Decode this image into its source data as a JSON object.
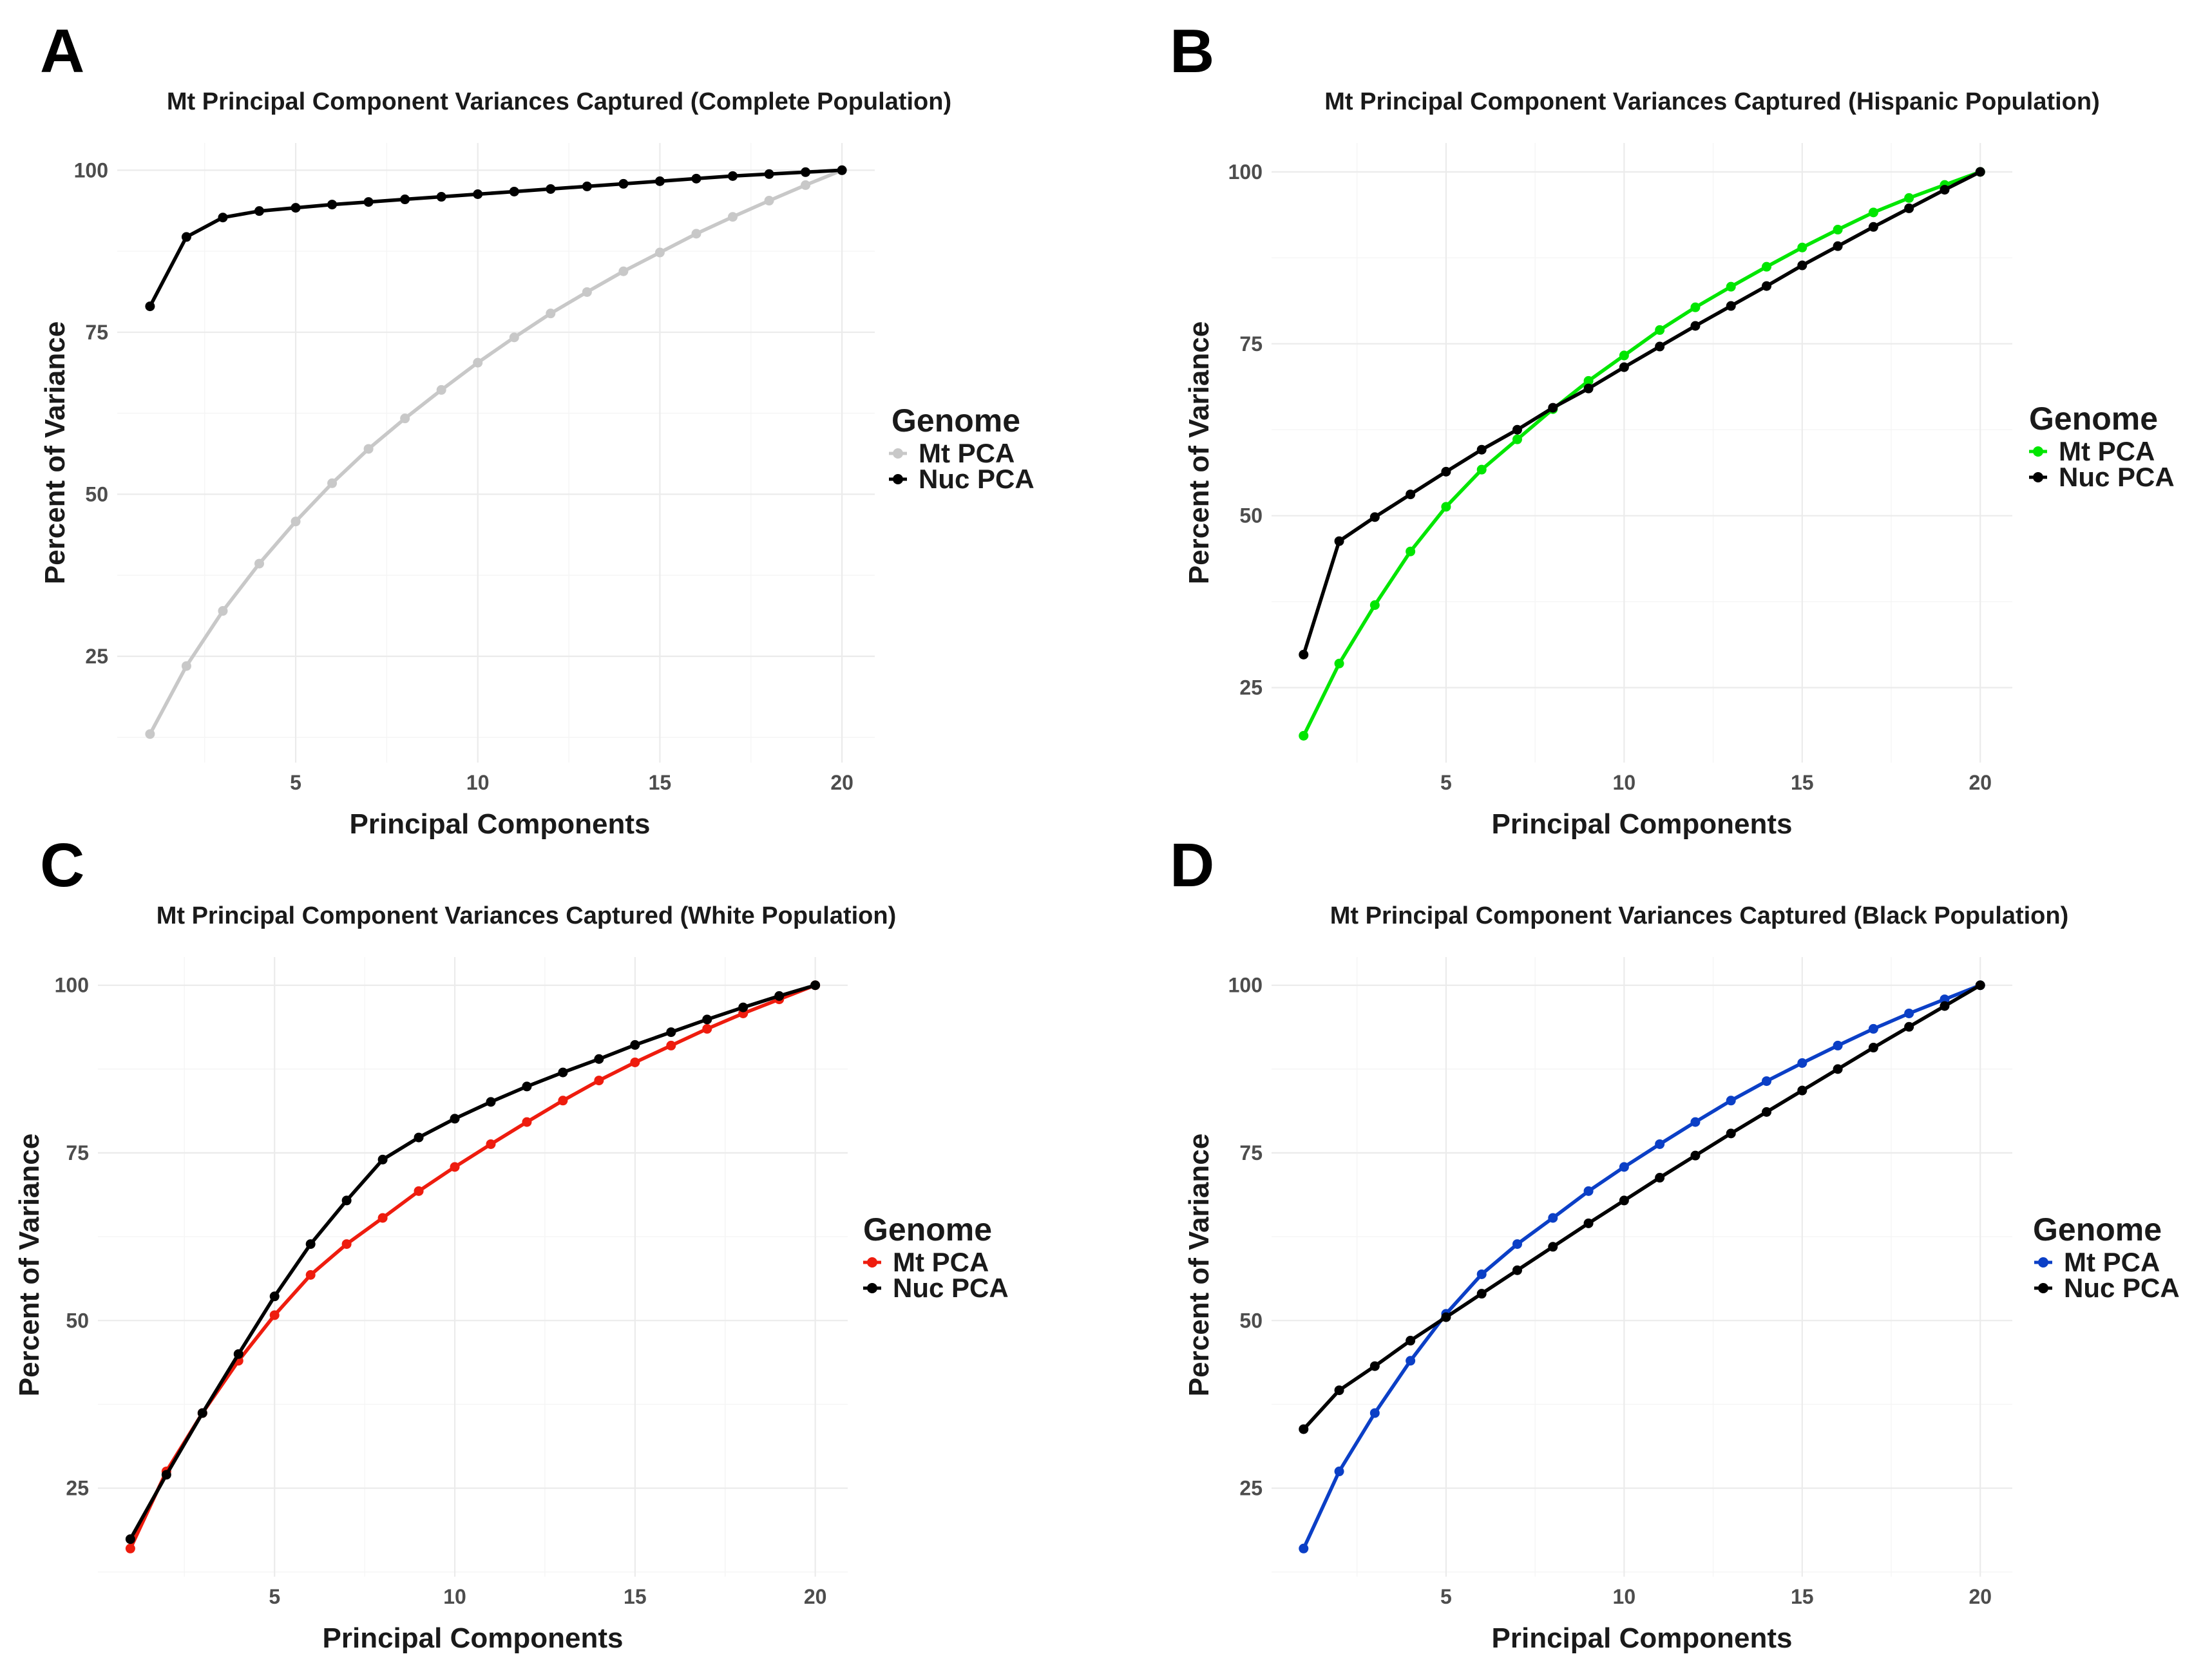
{
  "chart_data": [
    {
      "type": "line",
      "panel_label": "A",
      "title": "Mt Principal Component Variances Captured (Complete Population)",
      "xlabel": "Principal Components",
      "ylabel": "Percent of Variance",
      "xlim": [
        0.1,
        20.9
      ],
      "ylim": [
        8.6,
        104.2
      ],
      "x_ticks": [
        5,
        10,
        15,
        20
      ],
      "y_ticks": [
        25,
        50,
        75,
        100
      ],
      "legend_title": "Genome",
      "x": [
        1,
        2,
        3,
        4,
        5,
        6,
        7,
        8,
        9,
        10,
        11,
        12,
        13,
        14,
        15,
        16,
        17,
        18,
        19,
        20
      ],
      "series": [
        {
          "name": "Mt PCA",
          "color": "#c8c8c8",
          "values": [
            13.0,
            23.5,
            32.0,
            39.3,
            45.8,
            51.7,
            57.0,
            61.7,
            66.1,
            70.3,
            74.2,
            77.9,
            81.2,
            84.4,
            87.3,
            90.2,
            92.8,
            95.3,
            97.7,
            100.0
          ]
        },
        {
          "name": "Nuc PCA",
          "color": "#000000",
          "values": [
            79.0,
            89.7,
            92.7,
            93.7,
            94.2,
            94.7,
            95.1,
            95.5,
            95.9,
            96.3,
            96.7,
            97.1,
            97.5,
            97.9,
            98.3,
            98.7,
            99.1,
            99.4,
            99.7,
            100.0
          ]
        }
      ]
    },
    {
      "type": "line",
      "panel_label": "B",
      "title": "Mt Principal Component Variances Captured (Hispanic Population)",
      "xlabel": "Principal Components",
      "ylabel": "Percent of Variance",
      "xlim": [
        0.1,
        20.9
      ],
      "ylim": [
        14.1,
        104.2
      ],
      "x_ticks": [
        5,
        10,
        15,
        20
      ],
      "y_ticks": [
        25,
        50,
        75,
        100
      ],
      "legend_title": "Genome",
      "x": [
        1,
        2,
        3,
        4,
        5,
        6,
        7,
        8,
        9,
        10,
        11,
        12,
        13,
        14,
        15,
        16,
        17,
        18,
        19,
        20
      ],
      "series": [
        {
          "name": "Mt PCA",
          "color": "#00e600",
          "values": [
            18.0,
            28.5,
            37.0,
            44.8,
            51.3,
            56.7,
            61.1,
            65.5,
            69.6,
            73.3,
            77.0,
            80.3,
            83.3,
            86.2,
            89.0,
            91.6,
            94.1,
            96.2,
            98.1,
            100.0
          ]
        },
        {
          "name": "Nuc PCA",
          "color": "#000000",
          "values": [
            29.8,
            46.3,
            49.8,
            53.1,
            56.4,
            59.6,
            62.5,
            65.7,
            68.5,
            71.6,
            74.6,
            77.6,
            80.5,
            83.4,
            86.4,
            89.2,
            92.0,
            94.7,
            97.4,
            100.0
          ]
        }
      ]
    },
    {
      "type": "line",
      "panel_label": "C",
      "title": "Mt Principal Component Variances Captured (White Population)",
      "xlabel": "Principal Components",
      "ylabel": "Percent of Variance",
      "xlim": [
        0.1,
        20.9
      ],
      "ylim": [
        11.8,
        104.2
      ],
      "x_ticks": [
        5,
        10,
        15,
        20
      ],
      "y_ticks": [
        25,
        50,
        75,
        100
      ],
      "legend_title": "Genome",
      "x": [
        1,
        2,
        3,
        4,
        5,
        6,
        7,
        8,
        9,
        10,
        11,
        12,
        13,
        14,
        15,
        16,
        17,
        18,
        19,
        20
      ],
      "series": [
        {
          "name": "Mt PCA",
          "color": "#ee1c0e",
          "values": [
            16.0,
            27.5,
            36.2,
            44.0,
            50.8,
            56.8,
            61.4,
            65.3,
            69.3,
            72.9,
            76.3,
            79.6,
            82.8,
            85.8,
            88.5,
            91.0,
            93.5,
            95.8,
            97.9,
            100.0
          ]
        },
        {
          "name": "Nuc PCA",
          "color": "#000000",
          "values": [
            17.4,
            27.0,
            36.2,
            45.0,
            53.6,
            61.4,
            67.9,
            74.0,
            77.3,
            80.1,
            82.6,
            84.9,
            87.0,
            89.0,
            91.1,
            93.0,
            94.9,
            96.7,
            98.4,
            100.0
          ]
        }
      ]
    },
    {
      "type": "line",
      "panel_label": "D",
      "title": "Mt Principal Component Variances Captured (Black Population)",
      "xlabel": "Principal Components",
      "ylabel": "Percent of Variance",
      "xlim": [
        0.1,
        20.9
      ],
      "ylim": [
        11.8,
        104.2
      ],
      "x_ticks": [
        5,
        10,
        15,
        20
      ],
      "y_ticks": [
        25,
        50,
        75,
        100
      ],
      "legend_title": "Genome",
      "x": [
        1,
        2,
        3,
        4,
        5,
        6,
        7,
        8,
        9,
        10,
        11,
        12,
        13,
        14,
        15,
        16,
        17,
        18,
        19,
        20
      ],
      "series": [
        {
          "name": "Mt PCA",
          "color": "#0b3fc6",
          "values": [
            16.0,
            27.5,
            36.2,
            44.0,
            51.0,
            56.9,
            61.4,
            65.3,
            69.3,
            72.9,
            76.3,
            79.6,
            82.8,
            85.7,
            88.4,
            91.0,
            93.5,
            95.8,
            97.9,
            100.0
          ]
        },
        {
          "name": "Nuc PCA",
          "color": "#000000",
          "values": [
            33.8,
            39.6,
            43.2,
            47.0,
            50.5,
            54.0,
            57.5,
            61.0,
            64.5,
            67.9,
            71.3,
            74.6,
            77.9,
            81.1,
            84.3,
            87.5,
            90.7,
            93.8,
            96.9,
            100.0
          ]
        }
      ]
    }
  ]
}
